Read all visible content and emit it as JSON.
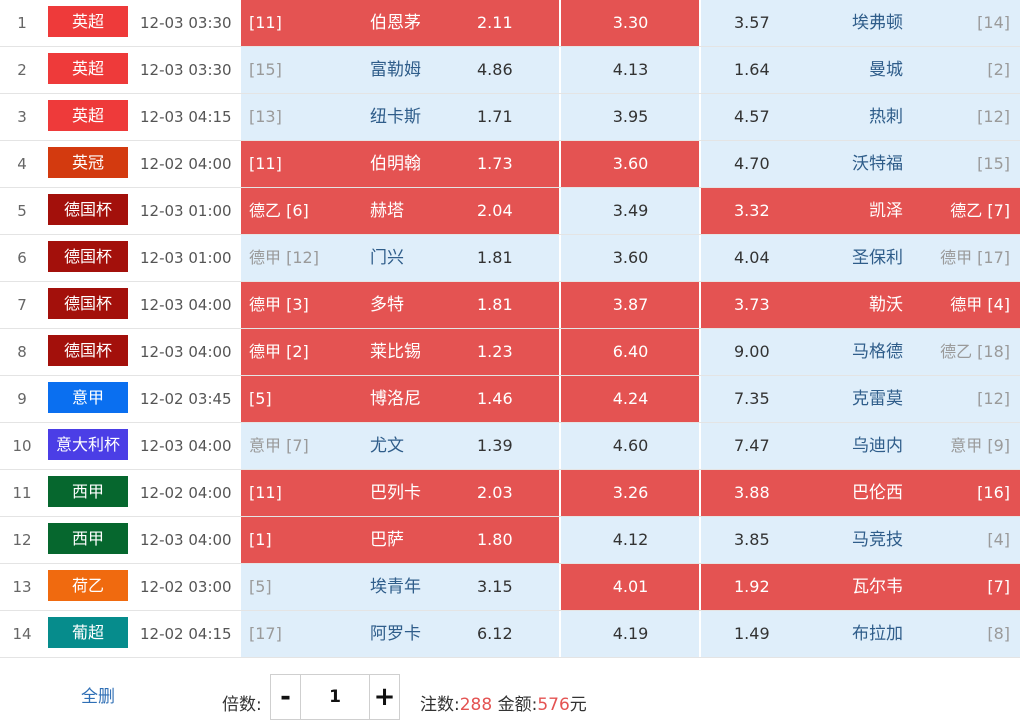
{
  "matches": [
    {
      "idx": "1",
      "league": "英超",
      "league_color": "#ee3a3a",
      "time": "12-03 03:30",
      "home_rank": "[11]",
      "home": "伯恩茅",
      "odd_home": "2.11",
      "odd_draw": "3.30",
      "odd_away": "3.57",
      "away": "埃弗顿",
      "away_rank": "[14]",
      "sel": [
        "home",
        "draw"
      ]
    },
    {
      "idx": "2",
      "league": "英超",
      "league_color": "#ee3a3a",
      "time": "12-03 03:30",
      "home_rank": "[15]",
      "home": "富勒姆",
      "odd_home": "4.86",
      "odd_draw": "4.13",
      "odd_away": "1.64",
      "away": "曼城",
      "away_rank": "[2]",
      "sel": []
    },
    {
      "idx": "3",
      "league": "英超",
      "league_color": "#ee3a3a",
      "time": "12-03 04:15",
      "home_rank": "[13]",
      "home": "纽卡斯",
      "odd_home": "1.71",
      "odd_draw": "3.95",
      "odd_away": "4.57",
      "away": "热刺",
      "away_rank": "[12]",
      "sel": []
    },
    {
      "idx": "4",
      "league": "英冠",
      "league_color": "#d33a0f",
      "time": "12-02 04:00",
      "home_rank": "[11]",
      "home": "伯明翰",
      "odd_home": "1.73",
      "odd_draw": "3.60",
      "odd_away": "4.70",
      "away": "沃特福",
      "away_rank": "[15]",
      "sel": [
        "home",
        "draw"
      ]
    },
    {
      "idx": "5",
      "league": "德国杯",
      "league_color": "#a3100b",
      "time": "12-03 01:00",
      "home_rank": "德乙 [6]",
      "home": "赫塔",
      "odd_home": "2.04",
      "odd_draw": "3.49",
      "odd_away": "3.32",
      "away": "凯泽",
      "away_rank": "德乙 [7]",
      "sel": [
        "home",
        "away"
      ]
    },
    {
      "idx": "6",
      "league": "德国杯",
      "league_color": "#a3100b",
      "time": "12-03 01:00",
      "home_rank": "德甲 [12]",
      "home": "门兴",
      "odd_home": "1.81",
      "odd_draw": "3.60",
      "odd_away": "4.04",
      "away": "圣保利",
      "away_rank": "德甲 [17]",
      "sel": []
    },
    {
      "idx": "7",
      "league": "德国杯",
      "league_color": "#a3100b",
      "time": "12-03 04:00",
      "home_rank": "德甲 [3]",
      "home": "多特",
      "odd_home": "1.81",
      "odd_draw": "3.87",
      "odd_away": "3.73",
      "away": "勒沃",
      "away_rank": "德甲 [4]",
      "sel": [
        "home",
        "draw",
        "away"
      ]
    },
    {
      "idx": "8",
      "league": "德国杯",
      "league_color": "#a3100b",
      "time": "12-03 04:00",
      "home_rank": "德甲 [2]",
      "home": "莱比锡",
      "odd_home": "1.23",
      "odd_draw": "6.40",
      "odd_away": "9.00",
      "away": "马格德",
      "away_rank": "德乙 [18]",
      "sel": [
        "home",
        "draw"
      ]
    },
    {
      "idx": "9",
      "league": "意甲",
      "league_color": "#0a6ff0",
      "time": "12-02 03:45",
      "home_rank": "[5]",
      "home": "博洛尼",
      "odd_home": "1.46",
      "odd_draw": "4.24",
      "odd_away": "7.35",
      "away": "克雷莫",
      "away_rank": "[12]",
      "sel": [
        "home",
        "draw"
      ]
    },
    {
      "idx": "10",
      "league": "意大利杯",
      "league_color": "#4b3ee6",
      "time": "12-03 04:00",
      "home_rank": "意甲 [7]",
      "home": "尤文",
      "odd_home": "1.39",
      "odd_draw": "4.60",
      "odd_away": "7.47",
      "away": "乌迪内",
      "away_rank": "意甲 [9]",
      "sel": []
    },
    {
      "idx": "11",
      "league": "西甲",
      "league_color": "#06672e",
      "time": "12-02 04:00",
      "home_rank": "[11]",
      "home": "巴列卡",
      "odd_home": "2.03",
      "odd_draw": "3.26",
      "odd_away": "3.88",
      "away": "巴伦西",
      "away_rank": "[16]",
      "sel": [
        "home",
        "draw",
        "away"
      ]
    },
    {
      "idx": "12",
      "league": "西甲",
      "league_color": "#06672e",
      "time": "12-03 04:00",
      "home_rank": "[1]",
      "home": "巴萨",
      "odd_home": "1.80",
      "odd_draw": "4.12",
      "odd_away": "3.85",
      "away": "马竞技",
      "away_rank": "[4]",
      "sel": [
        "home"
      ]
    },
    {
      "idx": "13",
      "league": "荷乙",
      "league_color": "#f06a0f",
      "time": "12-02 03:00",
      "home_rank": "[5]",
      "home": "埃青年",
      "odd_home": "3.15",
      "odd_draw": "4.01",
      "odd_away": "1.92",
      "away": "瓦尔韦",
      "away_rank": "[7]",
      "sel": [
        "draw",
        "away"
      ]
    },
    {
      "idx": "14",
      "league": "葡超",
      "league_color": "#068c8c",
      "time": "12-02 04:15",
      "home_rank": "[17]",
      "home": "阿罗卡",
      "odd_home": "6.12",
      "odd_draw": "4.19",
      "odd_away": "1.49",
      "away": "布拉加",
      "away_rank": "[8]",
      "sel": []
    }
  ],
  "footer": {
    "clear_label": "全删",
    "multiplier_label": "倍数:",
    "minus": "-",
    "plus": "+",
    "multiplier_value": "1",
    "bets_label": "注数:",
    "bets_value": "288",
    "amount_label": "金额:",
    "amount_value": "576",
    "currency": "元"
  },
  "colors": {
    "selected": "#e45352",
    "unselected": "#dfeefa"
  }
}
